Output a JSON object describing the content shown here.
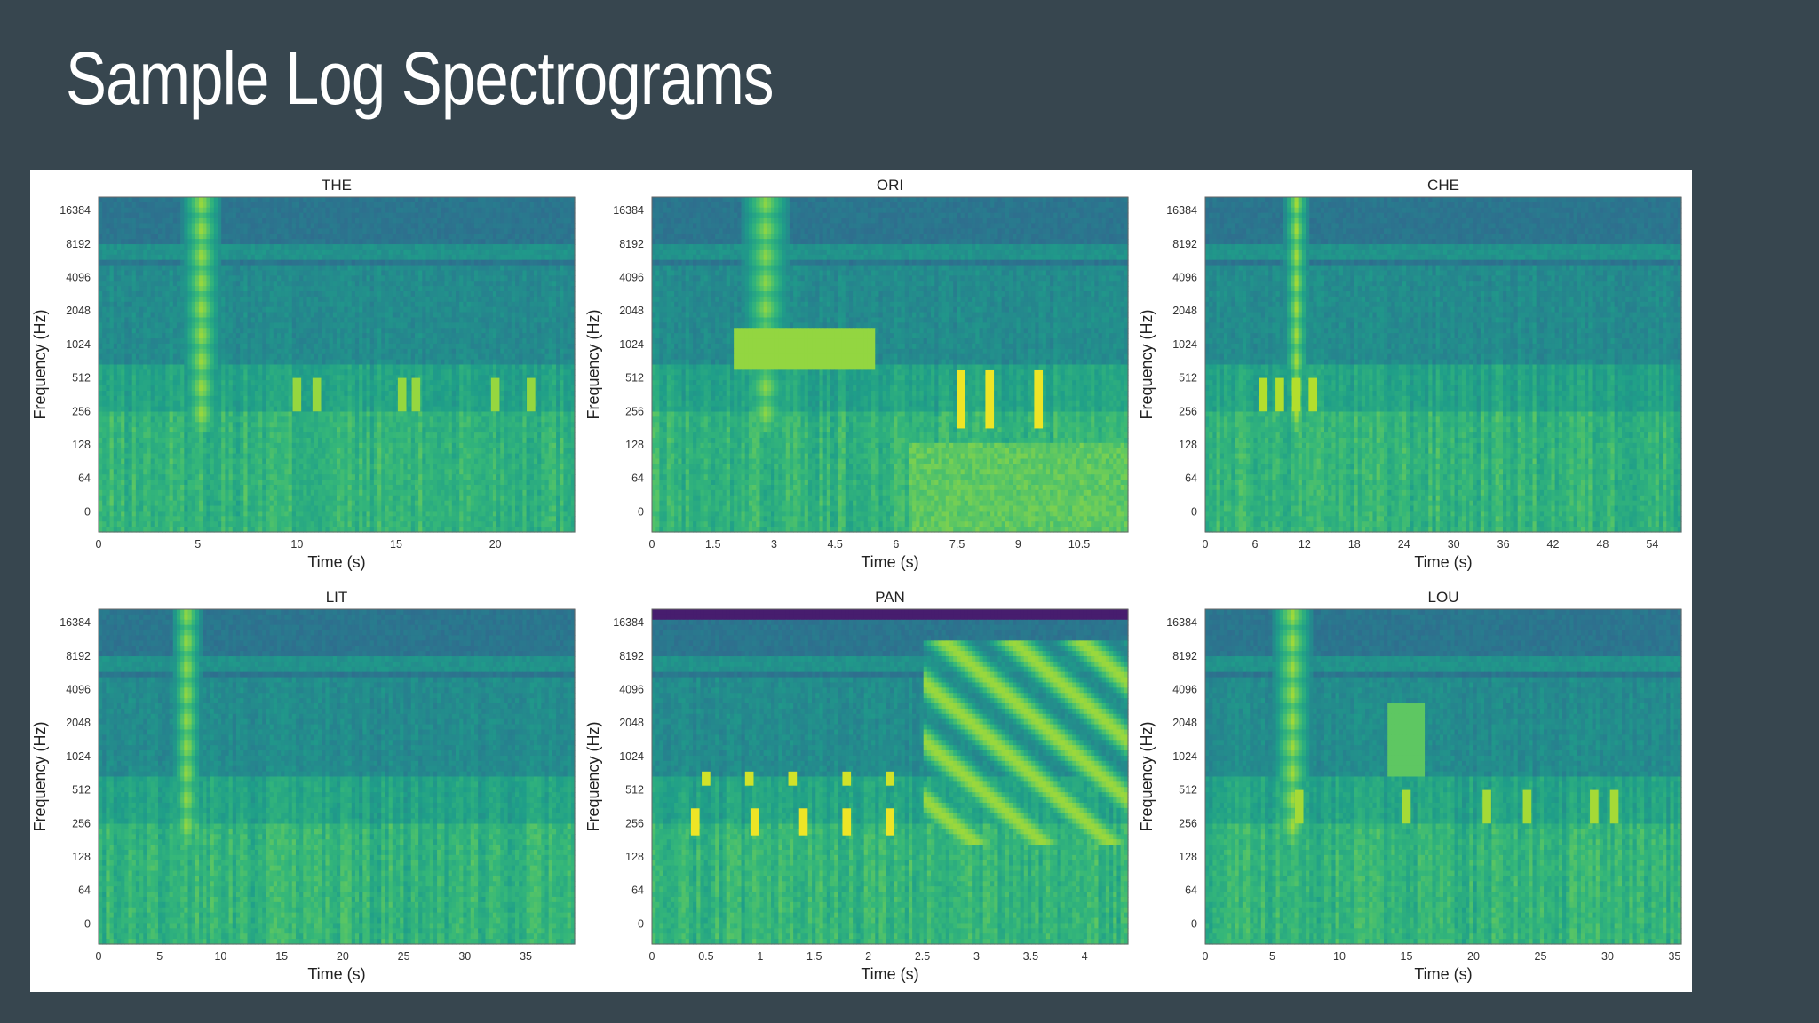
{
  "slide": {
    "title": "Sample Log Spectrograms"
  },
  "colors": {
    "background": "#37464f",
    "panel": "#ffffff",
    "colormap": "viridis"
  },
  "chart_data": [
    {
      "type": "heatmap",
      "title": "THE",
      "xlabel": "Time (s)",
      "ylabel": "Frequency (Hz)",
      "xlim": [
        0,
        24
      ],
      "xticks": [
        0,
        5,
        10,
        15,
        20
      ],
      "yticks": [
        0,
        64,
        128,
        256,
        512,
        1024,
        2048,
        4096,
        8192,
        16384
      ],
      "yscale": "log2",
      "features": [
        {
          "kind": "harmonic_burst",
          "t_start": 4.2,
          "t_end": 6.2,
          "intensity": 0.75
        },
        {
          "kind": "band_blocks",
          "times": [
            10,
            11,
            15.3,
            16,
            20,
            21.8
          ],
          "f_low": 256,
          "f_high": 512,
          "intensity": 0.65
        }
      ]
    },
    {
      "type": "heatmap",
      "title": "ORI",
      "xlabel": "Time (s)",
      "ylabel": "Frequency (Hz)",
      "xlim": [
        0,
        11.7
      ],
      "xticks": [
        0,
        1.5,
        3,
        4.5,
        6,
        7.5,
        9,
        10.5
      ],
      "yticks": [
        0,
        64,
        128,
        256,
        512,
        1024,
        2048,
        4096,
        8192,
        16384
      ],
      "yscale": "log2",
      "features": [
        {
          "kind": "harmonic_burst",
          "t_start": 2.2,
          "t_end": 3.4,
          "intensity": 0.7
        },
        {
          "kind": "formant_blob",
          "t_start": 2.0,
          "t_end": 5.5,
          "f_low": 600,
          "f_high": 1400,
          "intensity": 0.75
        },
        {
          "kind": "band_blocks",
          "times": [
            7.6,
            8.3,
            9.5
          ],
          "f_low": 180,
          "f_high": 600,
          "intensity": 0.95
        },
        {
          "kind": "broadband",
          "t_start": 6.3,
          "t_end": 11.7,
          "f_low": 0,
          "f_high": 128,
          "intensity": 0.7
        }
      ]
    },
    {
      "type": "heatmap",
      "title": "CHE",
      "xlabel": "Time (s)",
      "ylabel": "Frequency (Hz)",
      "xlim": [
        0,
        57.5
      ],
      "xticks": [
        0,
        6,
        12,
        18,
        24,
        30,
        36,
        42,
        48,
        54
      ],
      "yticks": [
        0,
        64,
        128,
        256,
        512,
        1024,
        2048,
        4096,
        8192,
        16384
      ],
      "yscale": "log2",
      "features": [
        {
          "kind": "harmonic_burst",
          "t_start": 9.5,
          "t_end": 12.5,
          "intensity": 0.75
        },
        {
          "kind": "band_blocks",
          "times": [
            7,
            9,
            11,
            13
          ],
          "f_low": 256,
          "f_high": 512,
          "intensity": 0.75
        }
      ]
    },
    {
      "type": "heatmap",
      "title": "LIT",
      "xlabel": "Time (s)",
      "ylabel": "Frequency (Hz)",
      "xlim": [
        0,
        39
      ],
      "xticks": [
        0,
        5,
        10,
        15,
        20,
        25,
        30,
        35
      ],
      "yticks": [
        0,
        64,
        128,
        256,
        512,
        1024,
        2048,
        4096,
        8192,
        16384
      ],
      "yscale": "log2",
      "features": [
        {
          "kind": "harmonic_burst",
          "t_start": 6.0,
          "t_end": 8.5,
          "intensity": 0.75
        }
      ]
    },
    {
      "type": "heatmap",
      "title": "PAN",
      "xlabel": "Time (s)",
      "ylabel": "Frequency (Hz)",
      "xlim": [
        0,
        4.4
      ],
      "xticks": [
        0,
        0.5,
        1,
        1.5,
        2,
        2.5,
        3,
        3.5,
        4
      ],
      "yticks": [
        0,
        64,
        128,
        256,
        512,
        1024,
        2048,
        4096,
        8192,
        16384
      ],
      "yscale": "log2",
      "features": [
        {
          "kind": "band_blocks",
          "times": [
            0.4,
            0.95,
            1.4,
            1.8,
            2.2
          ],
          "f_low": 200,
          "f_high": 350,
          "intensity": 0.95
        },
        {
          "kind": "band_blocks",
          "times": [
            0.5,
            0.9,
            1.3,
            1.8,
            2.2
          ],
          "f_low": 560,
          "f_high": 750,
          "intensity": 0.85
        },
        {
          "kind": "harmonic_arches",
          "t_start": 2.5,
          "t_end": 4.4,
          "intensity": 0.8
        },
        {
          "kind": "dark_top_band",
          "f_low": 16384,
          "intensity": 0.0
        }
      ]
    },
    {
      "type": "heatmap",
      "title": "LOU",
      "xlabel": "Time (s)",
      "ylabel": "Frequency (Hz)",
      "xlim": [
        0,
        35.5
      ],
      "xticks": [
        0,
        5,
        10,
        15,
        20,
        25,
        30,
        35
      ],
      "yticks": [
        0,
        64,
        128,
        256,
        512,
        1024,
        2048,
        4096,
        8192,
        16384
      ],
      "yscale": "log2",
      "features": [
        {
          "kind": "harmonic_burst",
          "t_start": 5.0,
          "t_end": 8.0,
          "intensity": 0.75
        },
        {
          "kind": "formant_blob",
          "t_start": 13.5,
          "t_end": 16.5,
          "f_low": 700,
          "f_high": 3000,
          "intensity": 0.55
        },
        {
          "kind": "band_blocks",
          "times": [
            7,
            15,
            21,
            24,
            29,
            30.5
          ],
          "f_low": 256,
          "f_high": 512,
          "intensity": 0.7
        }
      ]
    }
  ]
}
